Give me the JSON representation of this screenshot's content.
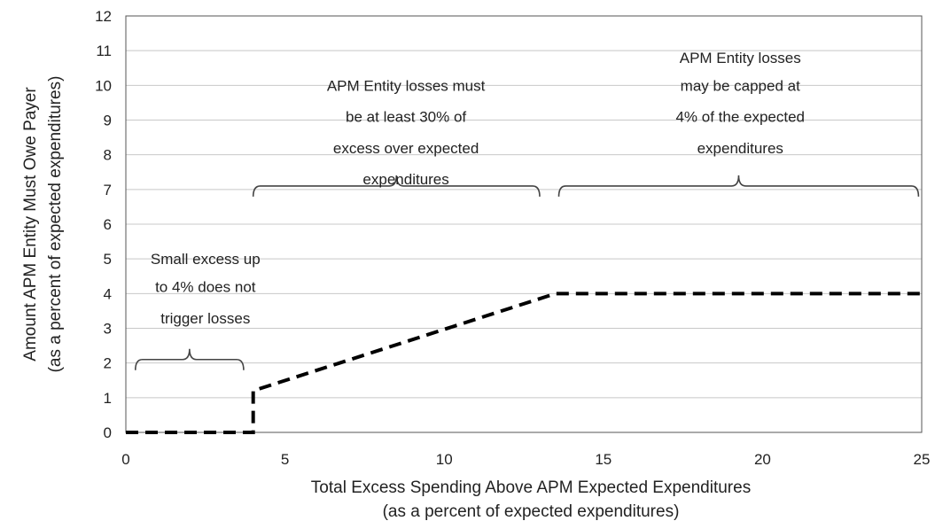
{
  "chart_data": {
    "type": "line",
    "xlabel_lines": [
      "Total Excess Spending Above APM Expected Expenditures",
      "(as a percent of expected expenditures)"
    ],
    "ylabel_lines": [
      "Amount APM Entity Must Owe Payer",
      "(as a percent of expected expenditures)"
    ],
    "xlim": [
      0,
      25
    ],
    "ylim": [
      0,
      12
    ],
    "x_ticks": [
      0,
      5,
      10,
      15,
      20,
      25
    ],
    "y_ticks": [
      0,
      1,
      2,
      3,
      4,
      5,
      6,
      7,
      8,
      9,
      10,
      11,
      12
    ],
    "grid": "horizontal",
    "series": [
      {
        "line_style": "dashed",
        "color": "#000000",
        "x": [
          0,
          4,
          4,
          13.5,
          25
        ],
        "y": [
          0,
          0,
          1.2,
          4,
          4
        ]
      }
    ],
    "annotations": [
      {
        "lines": [
          "Small excess up",
          "to 4% does not",
          "trigger losses"
        ],
        "bracket_x": [
          0.3,
          3.7
        ],
        "bracket_y": 2.1,
        "text_y": [
          5,
          4.2,
          3.3
        ],
        "text_x": 2.5
      },
      {
        "lines": [
          "APM Entity losses must",
          "be at least 30% of",
          "excess over expected",
          "expenditures"
        ],
        "bracket_x": [
          4,
          13
        ],
        "bracket_y": 7.1,
        "text_y": [
          10,
          9.1,
          8.2,
          7.3
        ],
        "text_x": 8.8
      },
      {
        "lines": [
          "APM Entity losses",
          "may be capped at",
          "4% of the expected",
          "expenditures"
        ],
        "bracket_x": [
          13.6,
          24.9
        ],
        "bracket_y": 7.1,
        "text_y": [
          10.8,
          10.0,
          9.1,
          8.2
        ],
        "text_x": 19.3
      }
    ]
  }
}
